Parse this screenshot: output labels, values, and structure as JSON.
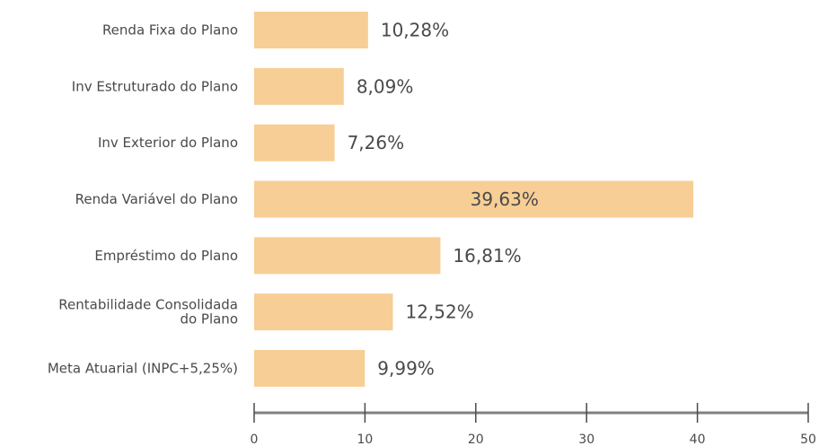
{
  "chart_data": {
    "type": "bar",
    "orientation": "horizontal",
    "title": "",
    "xlabel": "",
    "ylabel": "",
    "categories": [
      "Renda Fixa do Plano",
      "Inv Estruturado do Plano",
      "Inv Exterior do Plano",
      "Renda Variável do Plano",
      "Empréstimo do Plano",
      "Rentabilidade Consolidada do Plano",
      "Meta Atuarial (INPC+5,25%)"
    ],
    "category_lines": [
      [
        "Renda Fixa do Plano"
      ],
      [
        "Inv Estruturado do Plano"
      ],
      [
        "Inv Exterior do Plano"
      ],
      [
        "Renda Variável do Plano"
      ],
      [
        "Empréstimo do Plano"
      ],
      [
        "Rentabilidade Consolidada",
        "do Plano"
      ],
      [
        "Meta Atuarial (INPC+5,25%)"
      ]
    ],
    "values": [
      10.28,
      8.09,
      7.26,
      39.63,
      16.81,
      12.52,
      9.99
    ],
    "value_labels": [
      "10,28%",
      "8,09%",
      "7,26%",
      "39,63%",
      "16,81%",
      "12,52%",
      "9,99%"
    ],
    "xlim": [
      0,
      50
    ],
    "xticks": [
      0,
      10,
      20,
      30,
      40,
      50
    ],
    "xtick_labels": [
      "0",
      "10",
      "20",
      "30",
      "40",
      "50"
    ],
    "grid": false,
    "legend": "none",
    "colors": {
      "bar": "#f7ce96",
      "axis": "#808080",
      "text": "#4a4a4a"
    }
  }
}
